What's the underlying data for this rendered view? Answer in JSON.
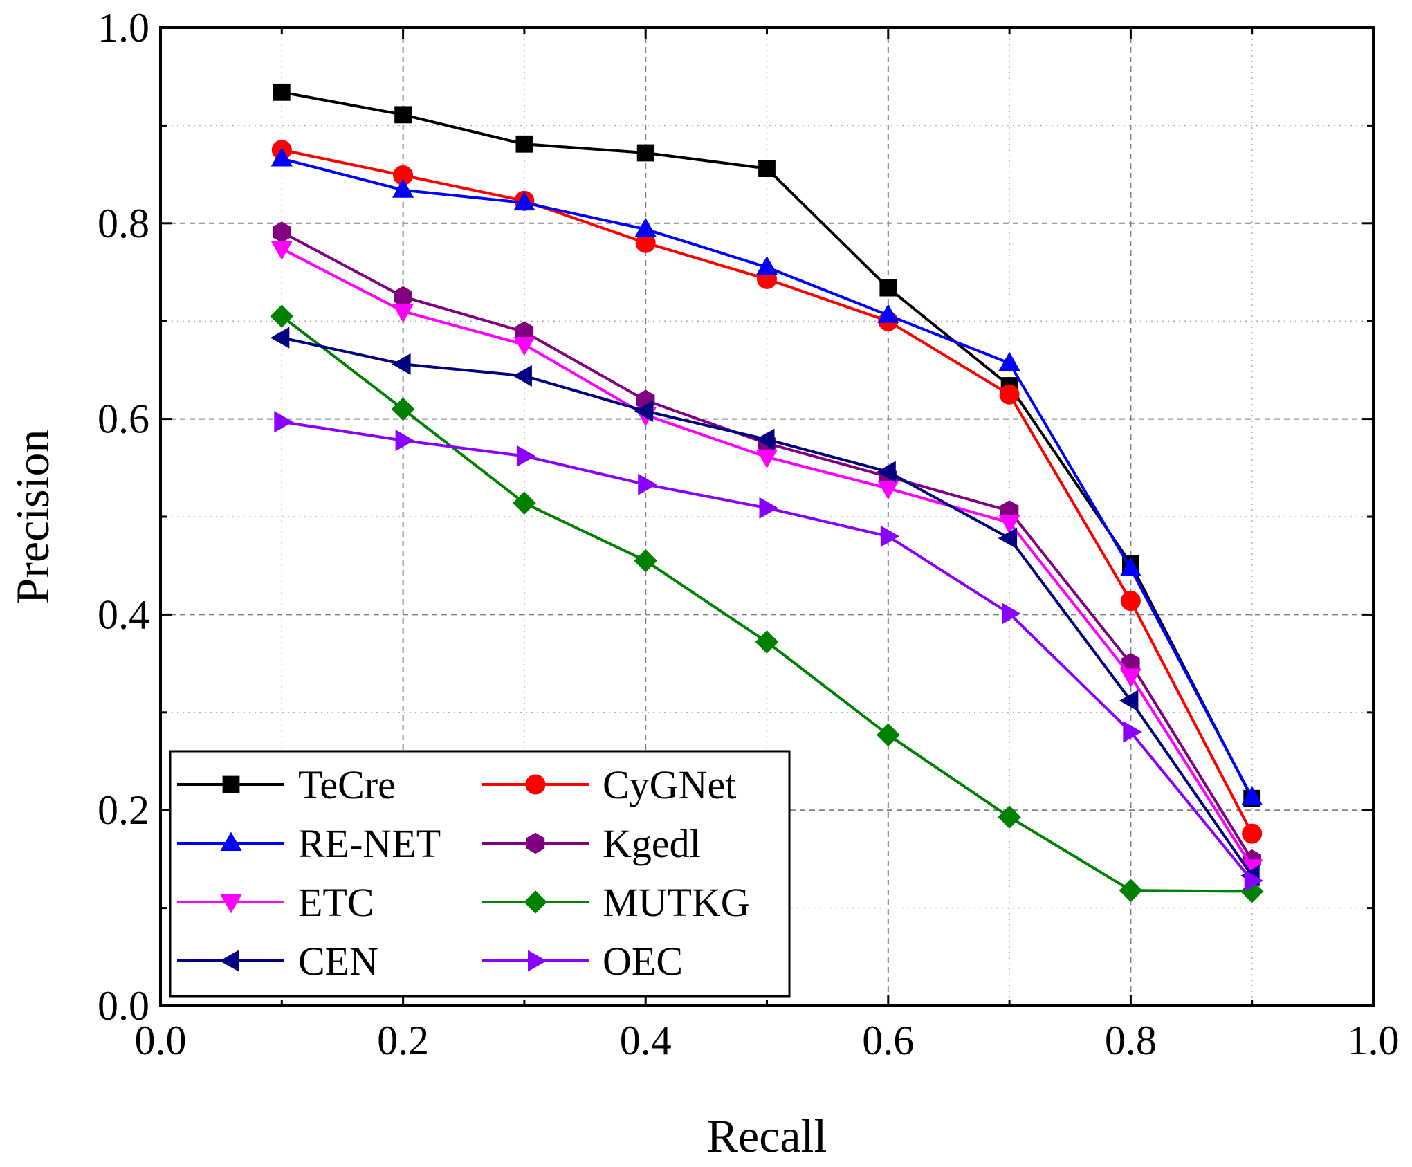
{
  "chart_data": {
    "type": "line",
    "title": "",
    "xlabel": "Recall",
    "ylabel": "Precision",
    "xlim": [
      0.0,
      1.0
    ],
    "ylim": [
      0.0,
      1.0
    ],
    "xticks": [
      "0.0",
      "0.2",
      "0.4",
      "0.6",
      "0.8",
      "1.0"
    ],
    "yticks": [
      "0.0",
      "0.2",
      "0.4",
      "0.6",
      "0.8",
      "1.0"
    ],
    "grid": true,
    "legend_position": "bottom-left",
    "x": [
      0.1,
      0.2,
      0.3,
      0.4,
      0.5,
      0.6,
      0.7,
      0.8,
      0.9
    ],
    "series": [
      {
        "name": "TeCre",
        "color": "#000000",
        "marker": "square",
        "values": [
          0.934,
          0.911,
          0.881,
          0.872,
          0.856,
          0.734,
          0.634,
          0.452,
          0.212
        ]
      },
      {
        "name": "CyGNet",
        "color": "#ff0000",
        "marker": "circle",
        "values": [
          0.875,
          0.849,
          0.823,
          0.78,
          0.743,
          0.7,
          0.625,
          0.414,
          0.176
        ]
      },
      {
        "name": "RE-NET",
        "color": "#0000ff",
        "marker": "triangle-up",
        "values": [
          0.866,
          0.834,
          0.821,
          0.794,
          0.755,
          0.706,
          0.657,
          0.447,
          0.213
        ]
      },
      {
        "name": "Kgedl",
        "color": "#800080",
        "marker": "hexagon",
        "values": [
          0.791,
          0.725,
          0.689,
          0.619,
          0.575,
          0.541,
          0.506,
          0.35,
          0.149
        ]
      },
      {
        "name": "ETC",
        "color": "#ff00ff",
        "marker": "triangle-down",
        "values": [
          0.774,
          0.71,
          0.676,
          0.604,
          0.561,
          0.529,
          0.494,
          0.337,
          0.142
        ]
      },
      {
        "name": "MUTKG",
        "color": "#008000",
        "marker": "diamond",
        "values": [
          0.705,
          0.61,
          0.514,
          0.455,
          0.372,
          0.277,
          0.193,
          0.118,
          0.117
        ]
      },
      {
        "name": "CEN",
        "color": "#000080",
        "marker": "triangle-left",
        "values": [
          0.683,
          0.656,
          0.644,
          0.608,
          0.579,
          0.546,
          0.478,
          0.312,
          0.133
        ]
      },
      {
        "name": "OEC",
        "color": "#8a00ff",
        "marker": "triangle-right",
        "values": [
          0.597,
          0.578,
          0.562,
          0.533,
          0.509,
          0.48,
          0.401,
          0.28,
          0.128
        ]
      }
    ]
  }
}
